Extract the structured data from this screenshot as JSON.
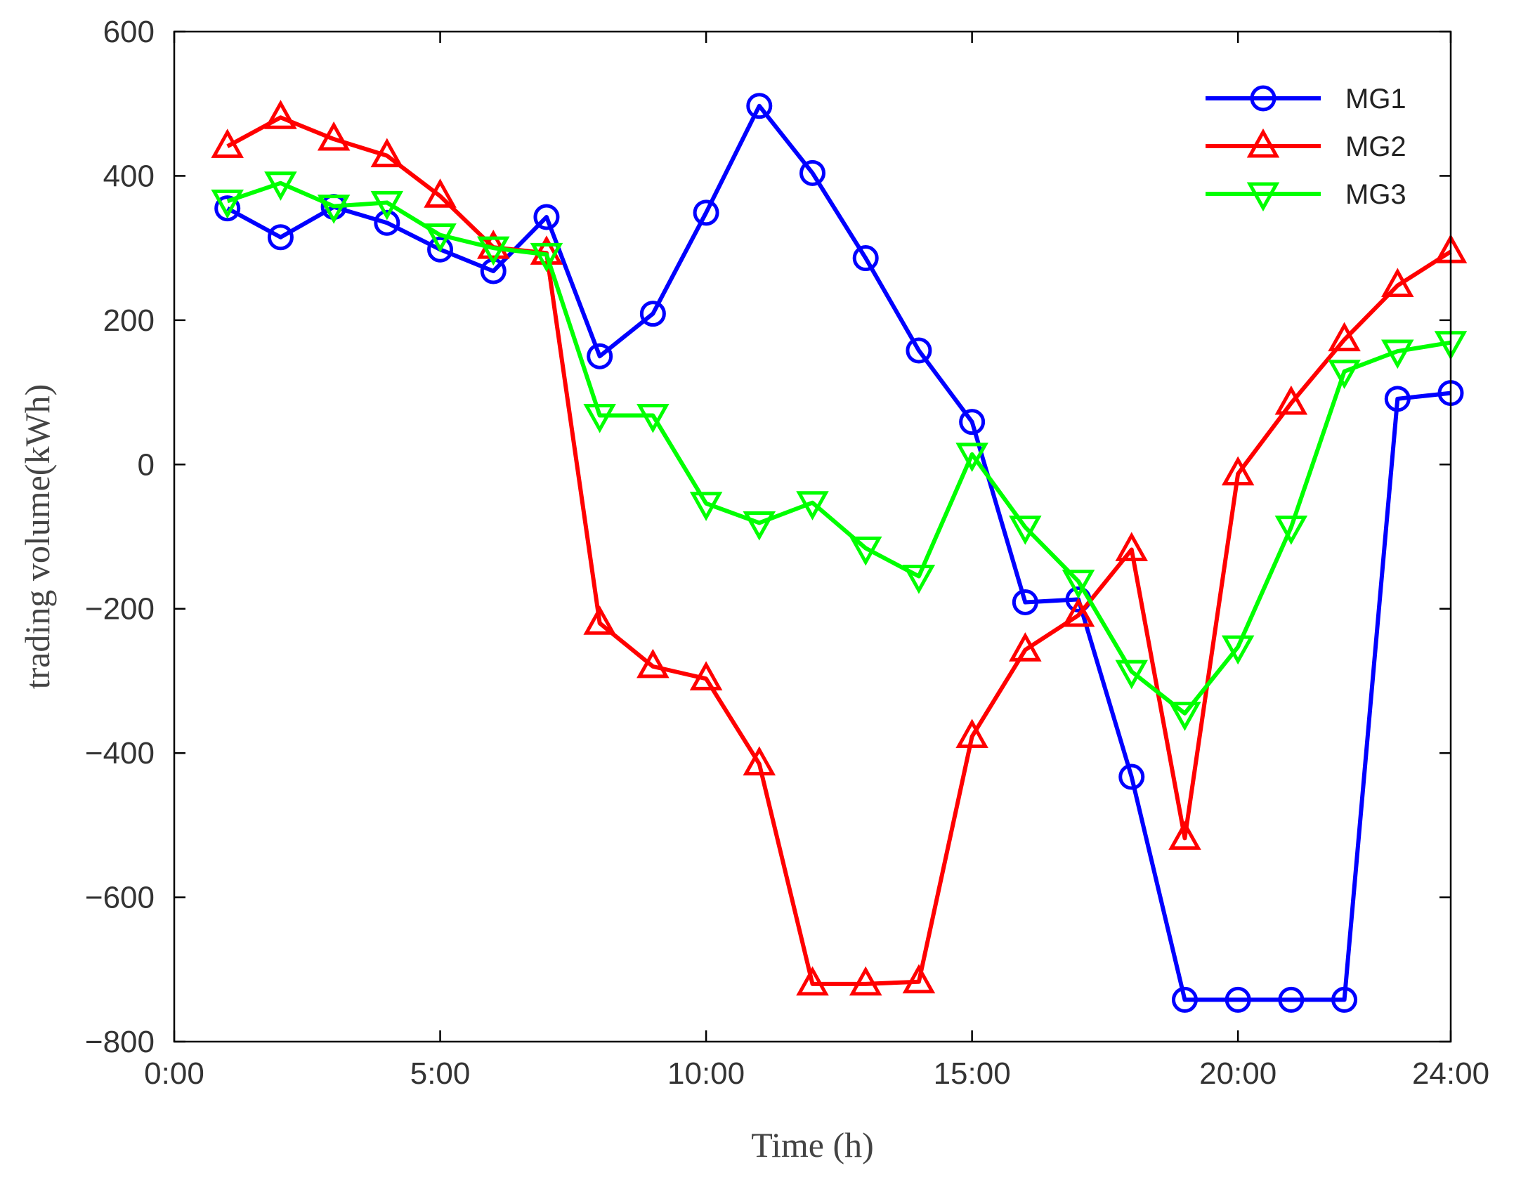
{
  "chart_data": {
    "type": "line",
    "title": "",
    "xlabel": "Time (h)",
    "ylabel": "trading volume(kWh)",
    "xlim": [
      0,
      24
    ],
    "ylim": [
      -800,
      600
    ],
    "x_ticks": [
      0,
      5,
      10,
      15,
      20,
      24
    ],
    "x_tick_labels": [
      "0:00",
      "5:00",
      "10:00",
      "15:00",
      "20:00",
      "24:00"
    ],
    "y_ticks": [
      600,
      400,
      200,
      0,
      -200,
      -400,
      -600,
      -800
    ],
    "y_tick_labels": [
      "600",
      "400",
      "200",
      "0",
      "−200",
      "−400",
      "−600",
      "−800"
    ],
    "grid": false,
    "legend": "top-right",
    "x": [
      1,
      2,
      3,
      4,
      5,
      6,
      7,
      8,
      9,
      10,
      11,
      12,
      13,
      14,
      15,
      16,
      17,
      18,
      19,
      20,
      21,
      22,
      23,
      24
    ],
    "series": [
      {
        "name": "MG1",
        "color": "#0000ff",
        "marker": "circle",
        "values": [
          355,
          315,
          357,
          335,
          298,
          268,
          343,
          150,
          209,
          349,
          497,
          404,
          286,
          158,
          59,
          -191,
          -187,
          -433,
          -742,
          -742,
          -742,
          -742,
          91,
          99
        ]
      },
      {
        "name": "MG2",
        "color": "#ff0000",
        "marker": "triangle-up",
        "values": [
          441,
          481,
          451,
          428,
          372,
          301,
          293,
          -220,
          -280,
          -297,
          -415,
          -720,
          -720,
          -717,
          -377,
          -257,
          -209,
          -118,
          -518,
          -13,
          85,
          173,
          248,
          295
        ]
      },
      {
        "name": "MG3",
        "color": "#00ff00",
        "marker": "triangle-down",
        "values": [
          365,
          390,
          358,
          363,
          318,
          300,
          291,
          68,
          68,
          -54,
          -81,
          -53,
          -116,
          -155,
          14,
          -87,
          -162,
          -287,
          -345,
          -253,
          -87,
          129,
          157,
          169
        ]
      }
    ]
  }
}
